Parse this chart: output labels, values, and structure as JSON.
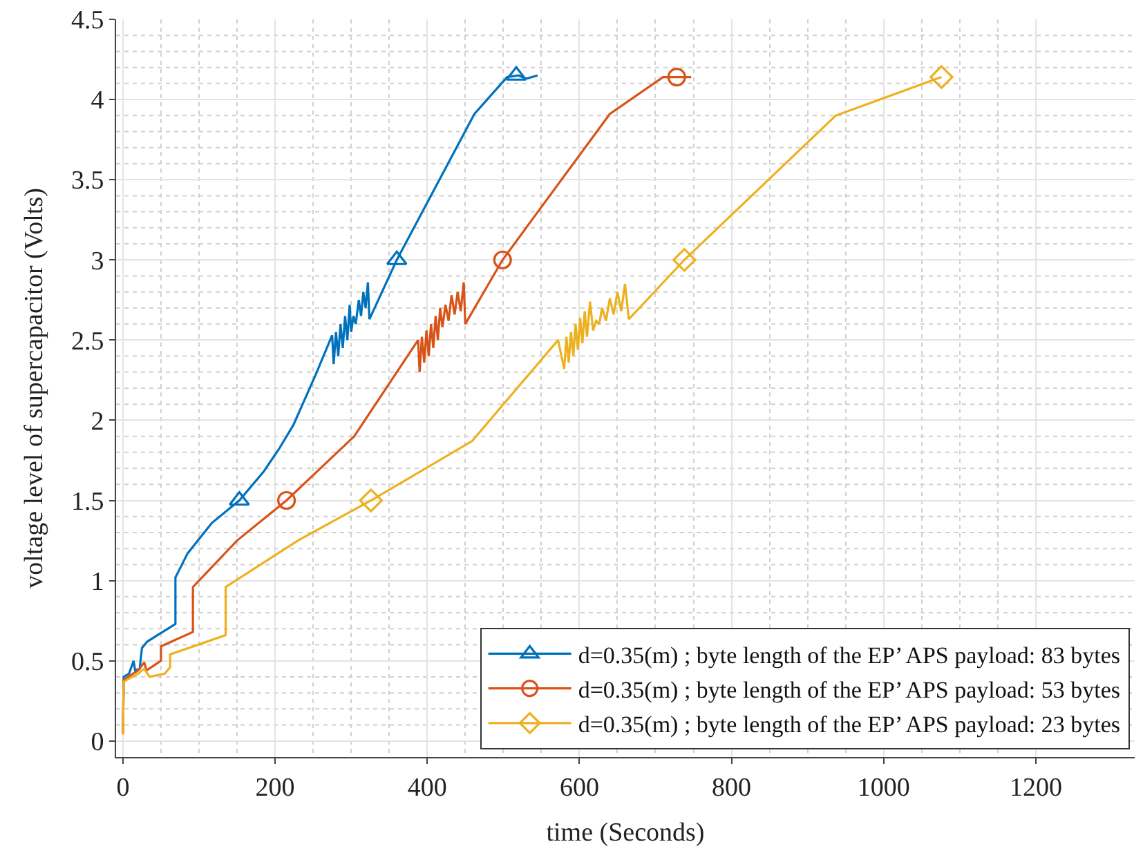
{
  "chart_data": {
    "type": "line",
    "xlabel": "time (Seconds)",
    "ylabel": "voltage level of supercapacitor (Volts)",
    "xlim": [
      -9,
      1330
    ],
    "xticks": [
      0,
      200,
      400,
      600,
      800,
      1000,
      1200
    ],
    "ylim": [
      -0.1,
      4.5
    ],
    "yticks": [
      0,
      0.5,
      1,
      1.5,
      2,
      2.5,
      3,
      3.5,
      4,
      4.5
    ],
    "grid": true,
    "legend": "bottom right",
    "line_style": "solid",
    "series": [
      {
        "name": "d=0.35(m) ; byte length of the EP’ APS payload: 83 bytes",
        "color": "#0072bd",
        "x": [
          0,
          1,
          8,
          14,
          16,
          22,
          25,
          32,
          69,
          69,
          85,
          117,
          153,
          185,
          205,
          224,
          253,
          275,
          277,
          280,
          283,
          286,
          289,
          292,
          295,
          298,
          300,
          303,
          306,
          310,
          313,
          316,
          319,
          322,
          324,
          360,
          462,
          505,
          520,
          530,
          545
        ],
        "values": [
          0.05,
          0.4,
          0.42,
          0.5,
          0.44,
          0.45,
          0.58,
          0.62,
          0.73,
          1.02,
          1.17,
          1.36,
          1.5,
          1.68,
          1.82,
          1.97,
          2.28,
          2.53,
          2.35,
          2.55,
          2.4,
          2.6,
          2.45,
          2.65,
          2.5,
          2.72,
          2.55,
          2.65,
          2.6,
          2.75,
          2.65,
          2.8,
          2.7,
          2.86,
          2.63,
          3.0,
          3.91,
          4.14,
          4.15,
          4.13,
          4.15
        ]
      },
      {
        "type": "scatter",
        "color": "#0072bd",
        "marker": "triangle",
        "x": [
          153,
          360,
          517
        ],
        "values": [
          1.5,
          3.0,
          4.15
        ]
      },
      {
        "name": "d=0.35(m) ; byte length of the EP’ APS payload: 53 bytes",
        "color": "#d95319",
        "x": [
          0,
          1,
          10,
          20,
          28,
          31,
          50,
          50,
          92,
          92,
          150,
          215,
          304,
          388,
          390,
          393,
          396,
          399,
          402,
          405,
          408,
          411,
          414,
          417,
          420,
          424,
          428,
          432,
          436,
          440,
          444,
          448,
          450,
          499,
          640,
          710,
          747
        ],
        "values": [
          0.05,
          0.38,
          0.41,
          0.44,
          0.49,
          0.44,
          0.5,
          0.59,
          0.68,
          0.96,
          1.25,
          1.5,
          1.9,
          2.5,
          2.3,
          2.52,
          2.36,
          2.56,
          2.4,
          2.6,
          2.45,
          2.65,
          2.5,
          2.7,
          2.58,
          2.72,
          2.62,
          2.78,
          2.66,
          2.8,
          2.68,
          2.86,
          2.6,
          3.0,
          3.91,
          4.14,
          4.14
        ]
      },
      {
        "type": "scatter",
        "color": "#d95319",
        "marker": "circle",
        "x": [
          215,
          499,
          728
        ],
        "values": [
          1.5,
          3.0,
          4.14
        ]
      },
      {
        "name": "d=0.35(m) ; byte length of the EP’ APS payload: 23 bytes",
        "color": "#edb120",
        "x": [
          0,
          1,
          20,
          28,
          35,
          55,
          62,
          62,
          135,
          135,
          230,
          326,
          459,
          572,
          580,
          583,
          586,
          589,
          592,
          595,
          598,
          601,
          604,
          607,
          610,
          614,
          618,
          622,
          626,
          630,
          635,
          640,
          645,
          650,
          655,
          660,
          665,
          738,
          937,
          1076
        ],
        "values": [
          0.04,
          0.37,
          0.42,
          0.45,
          0.4,
          0.42,
          0.46,
          0.54,
          0.66,
          0.96,
          1.25,
          1.5,
          1.87,
          2.5,
          2.32,
          2.52,
          2.36,
          2.55,
          2.4,
          2.6,
          2.44,
          2.64,
          2.48,
          2.68,
          2.52,
          2.74,
          2.56,
          2.62,
          2.6,
          2.7,
          2.62,
          2.76,
          2.66,
          2.8,
          2.68,
          2.85,
          2.63,
          3.0,
          3.9,
          4.14
        ]
      },
      {
        "type": "scatter",
        "color": "#edb120",
        "marker": "diamond",
        "x": [
          326,
          738,
          1076
        ],
        "values": [
          1.5,
          3.0,
          4.14
        ]
      }
    ]
  }
}
